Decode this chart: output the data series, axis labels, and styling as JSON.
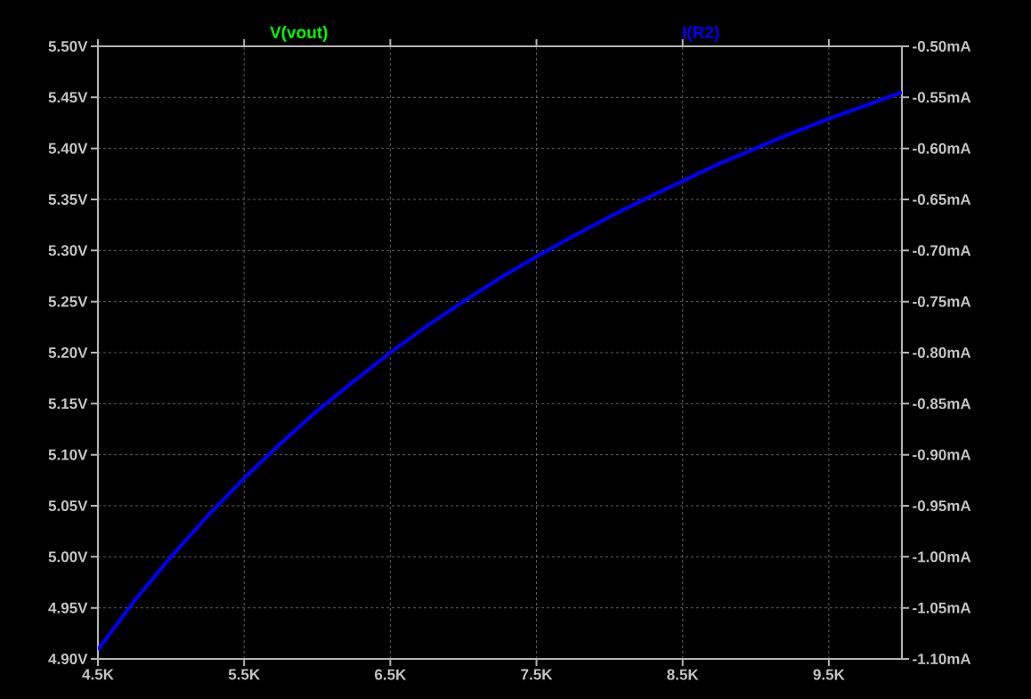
{
  "chart_data": {
    "type": "line",
    "x": [
      4.5,
      4.75,
      5,
      5.25,
      5.5,
      5.75,
      6,
      6.25,
      6.5,
      6.75,
      7,
      7.25,
      7.5,
      7.75,
      8,
      8.25,
      8.5,
      8.75,
      9,
      9.25,
      9.5,
      9.75,
      10
    ],
    "series": [
      {
        "name": "I(R2)",
        "color": "#0000ff",
        "axis": "y2",
        "values": [
          -1.091,
          -1.043,
          -1.0,
          -0.96,
          -0.923,
          -0.889,
          -0.857,
          -0.828,
          -0.8,
          -0.774,
          -0.75,
          -0.727,
          -0.706,
          -0.686,
          -0.667,
          -0.649,
          -0.632,
          -0.615,
          -0.6,
          -0.585,
          -0.571,
          -0.558,
          -0.545
        ]
      }
    ],
    "xlim": [
      4.5,
      10
    ],
    "xticks": [
      {
        "value": 4.5,
        "label": "4.5K"
      },
      {
        "value": 5.5,
        "label": "5.5K"
      },
      {
        "value": 6.5,
        "label": "6.5K"
      },
      {
        "value": 7.5,
        "label": "7.5K"
      },
      {
        "value": 8.5,
        "label": "8.5K"
      },
      {
        "value": 9.5,
        "label": "9.5K"
      }
    ],
    "ylim": [
      4.9,
      5.5
    ],
    "yticks": [
      {
        "value": 4.9,
        "label": "4.90V"
      },
      {
        "value": 4.95,
        "label": "4.95V"
      },
      {
        "value": 5.0,
        "label": "5.00V"
      },
      {
        "value": 5.05,
        "label": "5.05V"
      },
      {
        "value": 5.1,
        "label": "5.10V"
      },
      {
        "value": 5.15,
        "label": "5.15V"
      },
      {
        "value": 5.2,
        "label": "5.20V"
      },
      {
        "value": 5.25,
        "label": "5.25V"
      },
      {
        "value": 5.3,
        "label": "5.30V"
      },
      {
        "value": 5.35,
        "label": "5.35V"
      },
      {
        "value": 5.4,
        "label": "5.40V"
      },
      {
        "value": 5.45,
        "label": "5.45V"
      },
      {
        "value": 5.5,
        "label": "5.50V"
      }
    ],
    "y2lim": [
      -1.1,
      -0.5
    ],
    "y2ticks": [
      {
        "value": -1.1,
        "label": "-1.10mA"
      },
      {
        "value": -1.05,
        "label": "-1.05mA"
      },
      {
        "value": -1.0,
        "label": "-1.00mA"
      },
      {
        "value": -0.95,
        "label": "-0.95mA"
      },
      {
        "value": -0.9,
        "label": "-0.90mA"
      },
      {
        "value": -0.85,
        "label": "-0.85mA"
      },
      {
        "value": -0.8,
        "label": "-0.80mA"
      },
      {
        "value": -0.75,
        "label": "-0.75mA"
      },
      {
        "value": -0.7,
        "label": "-0.70mA"
      },
      {
        "value": -0.65,
        "label": "-0.65mA"
      },
      {
        "value": -0.6,
        "label": "-0.60mA"
      },
      {
        "value": -0.55,
        "label": "-0.55mA"
      },
      {
        "value": -0.5,
        "label": "-0.50mA"
      }
    ],
    "ylabel": "V(vout)",
    "grid": true,
    "marker": "none",
    "line_style": "solid"
  }
}
